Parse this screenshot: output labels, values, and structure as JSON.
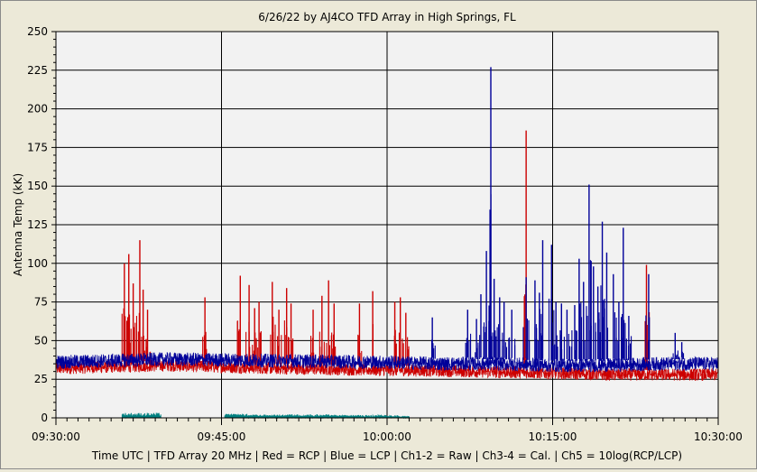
{
  "window": {
    "background": "#ece9d8"
  },
  "chart_data": {
    "type": "line",
    "title": "6/26/22  by  AJ4CO TFD Array  in  High Springs, FL",
    "xlabel": "Time UTC | TFD Array 20 MHz | Red = RCP | Blue = LCP | Ch1-2 = Raw | Ch3-4 = Cal. | Ch5 = 10log(RCP/LCP)",
    "ylabel": "Antenna Temp (kK)",
    "xlim": [
      "09:30:00",
      "10:30:00"
    ],
    "ylim": [
      0,
      250
    ],
    "y_ticks": [
      0,
      25,
      50,
      75,
      100,
      125,
      150,
      175,
      200,
      225,
      250
    ],
    "y_tick_labels": [
      "0",
      "25",
      "50",
      "75",
      "100",
      "125",
      "150",
      "175",
      "200",
      "225",
      "250"
    ],
    "x_tick_labels": [
      "09:30:00",
      "09:45:00",
      "10:00:00",
      "10:15:00",
      "10:30:00"
    ],
    "grid": true,
    "colors": {
      "rcp": "#cc0000",
      "lcp": "#000099",
      "ch5": "#008080",
      "plot_bg": "#f2f2f2",
      "grid": "#000000"
    },
    "series": [
      {
        "name": "Red = RCP",
        "color": "#cc0000",
        "baseline": [
          [
            0,
            32
          ],
          [
            5,
            33
          ],
          [
            10,
            34
          ],
          [
            20,
            32
          ],
          [
            30,
            31
          ],
          [
            38,
            30
          ],
          [
            45,
            29
          ],
          [
            50,
            28
          ],
          [
            55,
            28
          ],
          [
            60,
            28
          ]
        ],
        "spikes": [
          [
            6.2,
            100
          ],
          [
            6.6,
            106
          ],
          [
            7.0,
            87
          ],
          [
            7.6,
            115
          ],
          [
            7.9,
            83
          ],
          [
            8.3,
            70
          ],
          [
            13.5,
            78
          ],
          [
            16.7,
            92
          ],
          [
            17.5,
            86
          ],
          [
            18.0,
            71
          ],
          [
            18.4,
            75
          ],
          [
            19.6,
            88
          ],
          [
            20.2,
            70
          ],
          [
            20.9,
            84
          ],
          [
            21.3,
            74
          ],
          [
            23.3,
            70
          ],
          [
            24.1,
            79
          ],
          [
            24.7,
            89
          ],
          [
            25.2,
            74
          ],
          [
            27.5,
            74
          ],
          [
            28.7,
            82
          ],
          [
            30.7,
            75
          ],
          [
            31.2,
            78
          ],
          [
            31.7,
            68
          ],
          [
            42.6,
            186
          ],
          [
            53.5,
            99
          ]
        ]
      },
      {
        "name": "Blue = LCP",
        "color": "#000099",
        "baseline": [
          [
            0,
            36
          ],
          [
            10,
            38
          ],
          [
            20,
            37
          ],
          [
            30,
            36
          ],
          [
            35,
            35
          ],
          [
            40,
            35
          ],
          [
            45,
            34
          ],
          [
            50,
            34
          ],
          [
            55,
            35
          ],
          [
            60,
            35
          ]
        ],
        "spikes": [
          [
            34.1,
            65
          ],
          [
            37.3,
            70
          ],
          [
            38.1,
            64
          ],
          [
            38.5,
            80
          ],
          [
            39.0,
            108
          ],
          [
            39.4,
            227
          ],
          [
            39.7,
            90
          ],
          [
            40.2,
            78
          ],
          [
            40.6,
            75
          ],
          [
            41.3,
            70
          ],
          [
            42.6,
            91
          ],
          [
            43.4,
            89
          ],
          [
            43.8,
            81
          ],
          [
            44.1,
            115
          ],
          [
            44.9,
            112
          ],
          [
            45.3,
            75
          ],
          [
            45.8,
            74
          ],
          [
            46.3,
            70
          ],
          [
            47.0,
            73
          ],
          [
            47.4,
            103
          ],
          [
            47.8,
            88
          ],
          [
            48.3,
            151
          ],
          [
            48.7,
            98
          ],
          [
            49.1,
            85
          ],
          [
            49.5,
            127
          ],
          [
            49.9,
            107
          ],
          [
            50.5,
            93
          ],
          [
            51.0,
            75
          ],
          [
            51.4,
            123
          ],
          [
            51.9,
            66
          ],
          [
            53.7,
            93
          ],
          [
            56.1,
            55
          ],
          [
            56.7,
            49
          ]
        ]
      },
      {
        "name": "Ch5 = 10log(RCP/LCP)",
        "color": "#008080",
        "segments": [
          [
            6.0,
            9.5,
            2.5
          ],
          [
            15.3,
            17.3,
            2.0
          ],
          [
            17.3,
            20.3,
            1.6
          ],
          [
            20.3,
            25.3,
            1.8
          ],
          [
            25.3,
            31.0,
            1.4
          ],
          [
            31.0,
            32.0,
            0.8
          ]
        ]
      }
    ]
  }
}
